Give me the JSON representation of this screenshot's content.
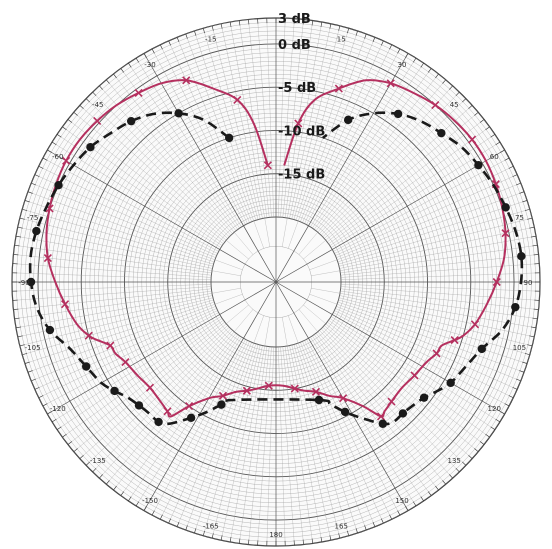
{
  "chart_data": {
    "type": "polar-line",
    "title": "",
    "radial_axis": {
      "unit": "dB",
      "min": -20,
      "max": 3,
      "labels": [
        {
          "value": 3,
          "text": "3 dB"
        },
        {
          "value": 0,
          "text": "0 dB"
        },
        {
          "value": -5,
          "text": "-5 dB"
        },
        {
          "value": -10,
          "text": "-10 dB"
        },
        {
          "value": -15,
          "text": "-15 dB"
        }
      ]
    },
    "angular_axis": {
      "unit": "degrees",
      "zero_direction": "top",
      "tick_labels": [
        {
          "deg": -15,
          "text": "-15"
        },
        {
          "deg": 15,
          "text": "15"
        },
        {
          "deg": -30,
          "text": "-30"
        },
        {
          "deg": 30,
          "text": "30"
        },
        {
          "deg": -45,
          "text": "-45"
        },
        {
          "deg": 45,
          "text": "45"
        },
        {
          "deg": -60,
          "text": "-60"
        },
        {
          "deg": 60,
          "text": "60"
        },
        {
          "deg": -75,
          "text": "-75"
        },
        {
          "deg": 75,
          "text": "75"
        },
        {
          "deg": -90,
          "text": "-90"
        },
        {
          "deg": 90,
          "text": "90"
        },
        {
          "deg": -105,
          "text": "-105"
        },
        {
          "deg": 105,
          "text": "105"
        },
        {
          "deg": -120,
          "text": "-120"
        },
        {
          "deg": 120,
          "text": "120"
        },
        {
          "deg": -135,
          "text": "-135"
        },
        {
          "deg": 135,
          "text": "135"
        },
        {
          "deg": -150,
          "text": "-150"
        },
        {
          "deg": 150,
          "text": "150"
        },
        {
          "deg": -165,
          "text": "-165"
        },
        {
          "deg": 165,
          "text": "165"
        },
        {
          "deg": 180,
          "text": "180"
        }
      ]
    },
    "grid": true,
    "series": [
      {
        "style": "solid",
        "marker": "x",
        "color": "#b5305f",
        "points": [
          [
            -4,
            -14
          ],
          [
            -8,
            -9
          ],
          [
            -12,
            -6
          ],
          [
            -18,
            -4
          ],
          [
            -24,
            -2
          ],
          [
            -30,
            -1
          ],
          [
            -36,
            -0.5
          ],
          [
            -42,
            0
          ],
          [
            -48,
            0.3
          ],
          [
            -54,
            0.5
          ],
          [
            -60,
            0.5
          ],
          [
            -66,
            0.3
          ],
          [
            -72,
            0
          ],
          [
            -78,
            -0.4
          ],
          [
            -84,
            -1
          ],
          [
            -90,
            -2
          ],
          [
            -96,
            -3
          ],
          [
            -102,
            -4
          ],
          [
            -106,
            -5
          ],
          [
            -108,
            -5.8
          ],
          [
            -111,
            -7
          ],
          [
            -114,
            -7.2
          ],
          [
            -118,
            -7.8
          ],
          [
            -124,
            -8.2
          ],
          [
            -130,
            -8.5
          ],
          [
            -136,
            -8.3
          ],
          [
            -140,
            -8
          ],
          [
            -142,
            -7.8
          ],
          [
            -145,
            -10
          ],
          [
            -150,
            -12
          ],
          [
            -155,
            -13
          ],
          [
            -160,
            -14
          ],
          [
            -165,
            -14.5
          ],
          [
            -170,
            -15
          ],
          [
            -176,
            -15.5
          ],
          [
            176,
            -15.5
          ],
          [
            170,
            -15
          ],
          [
            165,
            -14.5
          ],
          [
            160,
            -14
          ],
          [
            155,
            -13
          ],
          [
            150,
            -12
          ],
          [
            145,
            -10
          ],
          [
            142,
            -7.8
          ],
          [
            140,
            -8
          ],
          [
            136,
            -8.3
          ],
          [
            130,
            -8.5
          ],
          [
            124,
            -8.2
          ],
          [
            118,
            -7.8
          ],
          [
            114,
            -7.2
          ],
          [
            111,
            -7
          ],
          [
            108,
            -5.8
          ],
          [
            106,
            -5
          ],
          [
            102,
            -4
          ],
          [
            96,
            -3
          ],
          [
            90,
            -2
          ],
          [
            84,
            -1
          ],
          [
            78,
            -0.4
          ],
          [
            72,
            0
          ],
          [
            66,
            0.3
          ],
          [
            60,
            0.5
          ],
          [
            54,
            0.5
          ],
          [
            48,
            0.3
          ],
          [
            42,
            0
          ],
          [
            36,
            -0.5
          ],
          [
            30,
            -1
          ],
          [
            24,
            -2
          ],
          [
            18,
            -4
          ],
          [
            12,
            -6
          ],
          [
            8,
            -9
          ],
          [
            4,
            -14
          ]
        ]
      },
      {
        "style": "dashed",
        "marker": "circle",
        "color": "#1a1a1a",
        "points": [
          [
            -18,
            -10
          ],
          [
            -24,
            -7
          ],
          [
            -30,
            -5
          ],
          [
            -36,
            -3.5
          ],
          [
            -42,
            -2.5
          ],
          [
            -48,
            -1.8
          ],
          [
            -54,
            -1
          ],
          [
            -60,
            -0.5
          ],
          [
            -66,
            0
          ],
          [
            -72,
            0.4
          ],
          [
            -78,
            0.8
          ],
          [
            -84,
            1
          ],
          [
            -90,
            0.8
          ],
          [
            -96,
            0.3
          ],
          [
            -102,
            -0.8
          ],
          [
            -108,
            -2.5
          ],
          [
            -114,
            -3.5
          ],
          [
            -120,
            -4.2
          ],
          [
            -124,
            -5
          ],
          [
            -128,
            -5.8
          ],
          [
            -132,
            -6.2
          ],
          [
            -136,
            -6.4
          ],
          [
            -140,
            -6.4
          ],
          [
            -143,
            -7
          ],
          [
            -148,
            -9
          ],
          [
            -152,
            -10.5
          ],
          [
            -156,
            -12
          ],
          [
            -160,
            -13
          ],
          [
            160,
            -13
          ],
          [
            156,
            -12
          ],
          [
            152,
            -10.5
          ],
          [
            148,
            -9
          ],
          [
            143,
            -7
          ],
          [
            140,
            -6.4
          ],
          [
            136,
            -6.4
          ],
          [
            132,
            -6.2
          ],
          [
            128,
            -5.8
          ],
          [
            124,
            -5
          ],
          [
            120,
            -4.2
          ],
          [
            114,
            -3.5
          ],
          [
            108,
            -2.5
          ],
          [
            102,
            -0.8
          ],
          [
            96,
            0.3
          ],
          [
            90,
            0.8
          ],
          [
            84,
            1
          ],
          [
            78,
            0.8
          ],
          [
            72,
            0.4
          ],
          [
            66,
            0
          ],
          [
            60,
            -0.5
          ],
          [
            54,
            -1
          ],
          [
            48,
            -1.8
          ],
          [
            42,
            -2.5
          ],
          [
            36,
            -3.5
          ],
          [
            30,
            -5
          ],
          [
            24,
            -7
          ],
          [
            18,
            -10
          ]
        ]
      }
    ]
  }
}
